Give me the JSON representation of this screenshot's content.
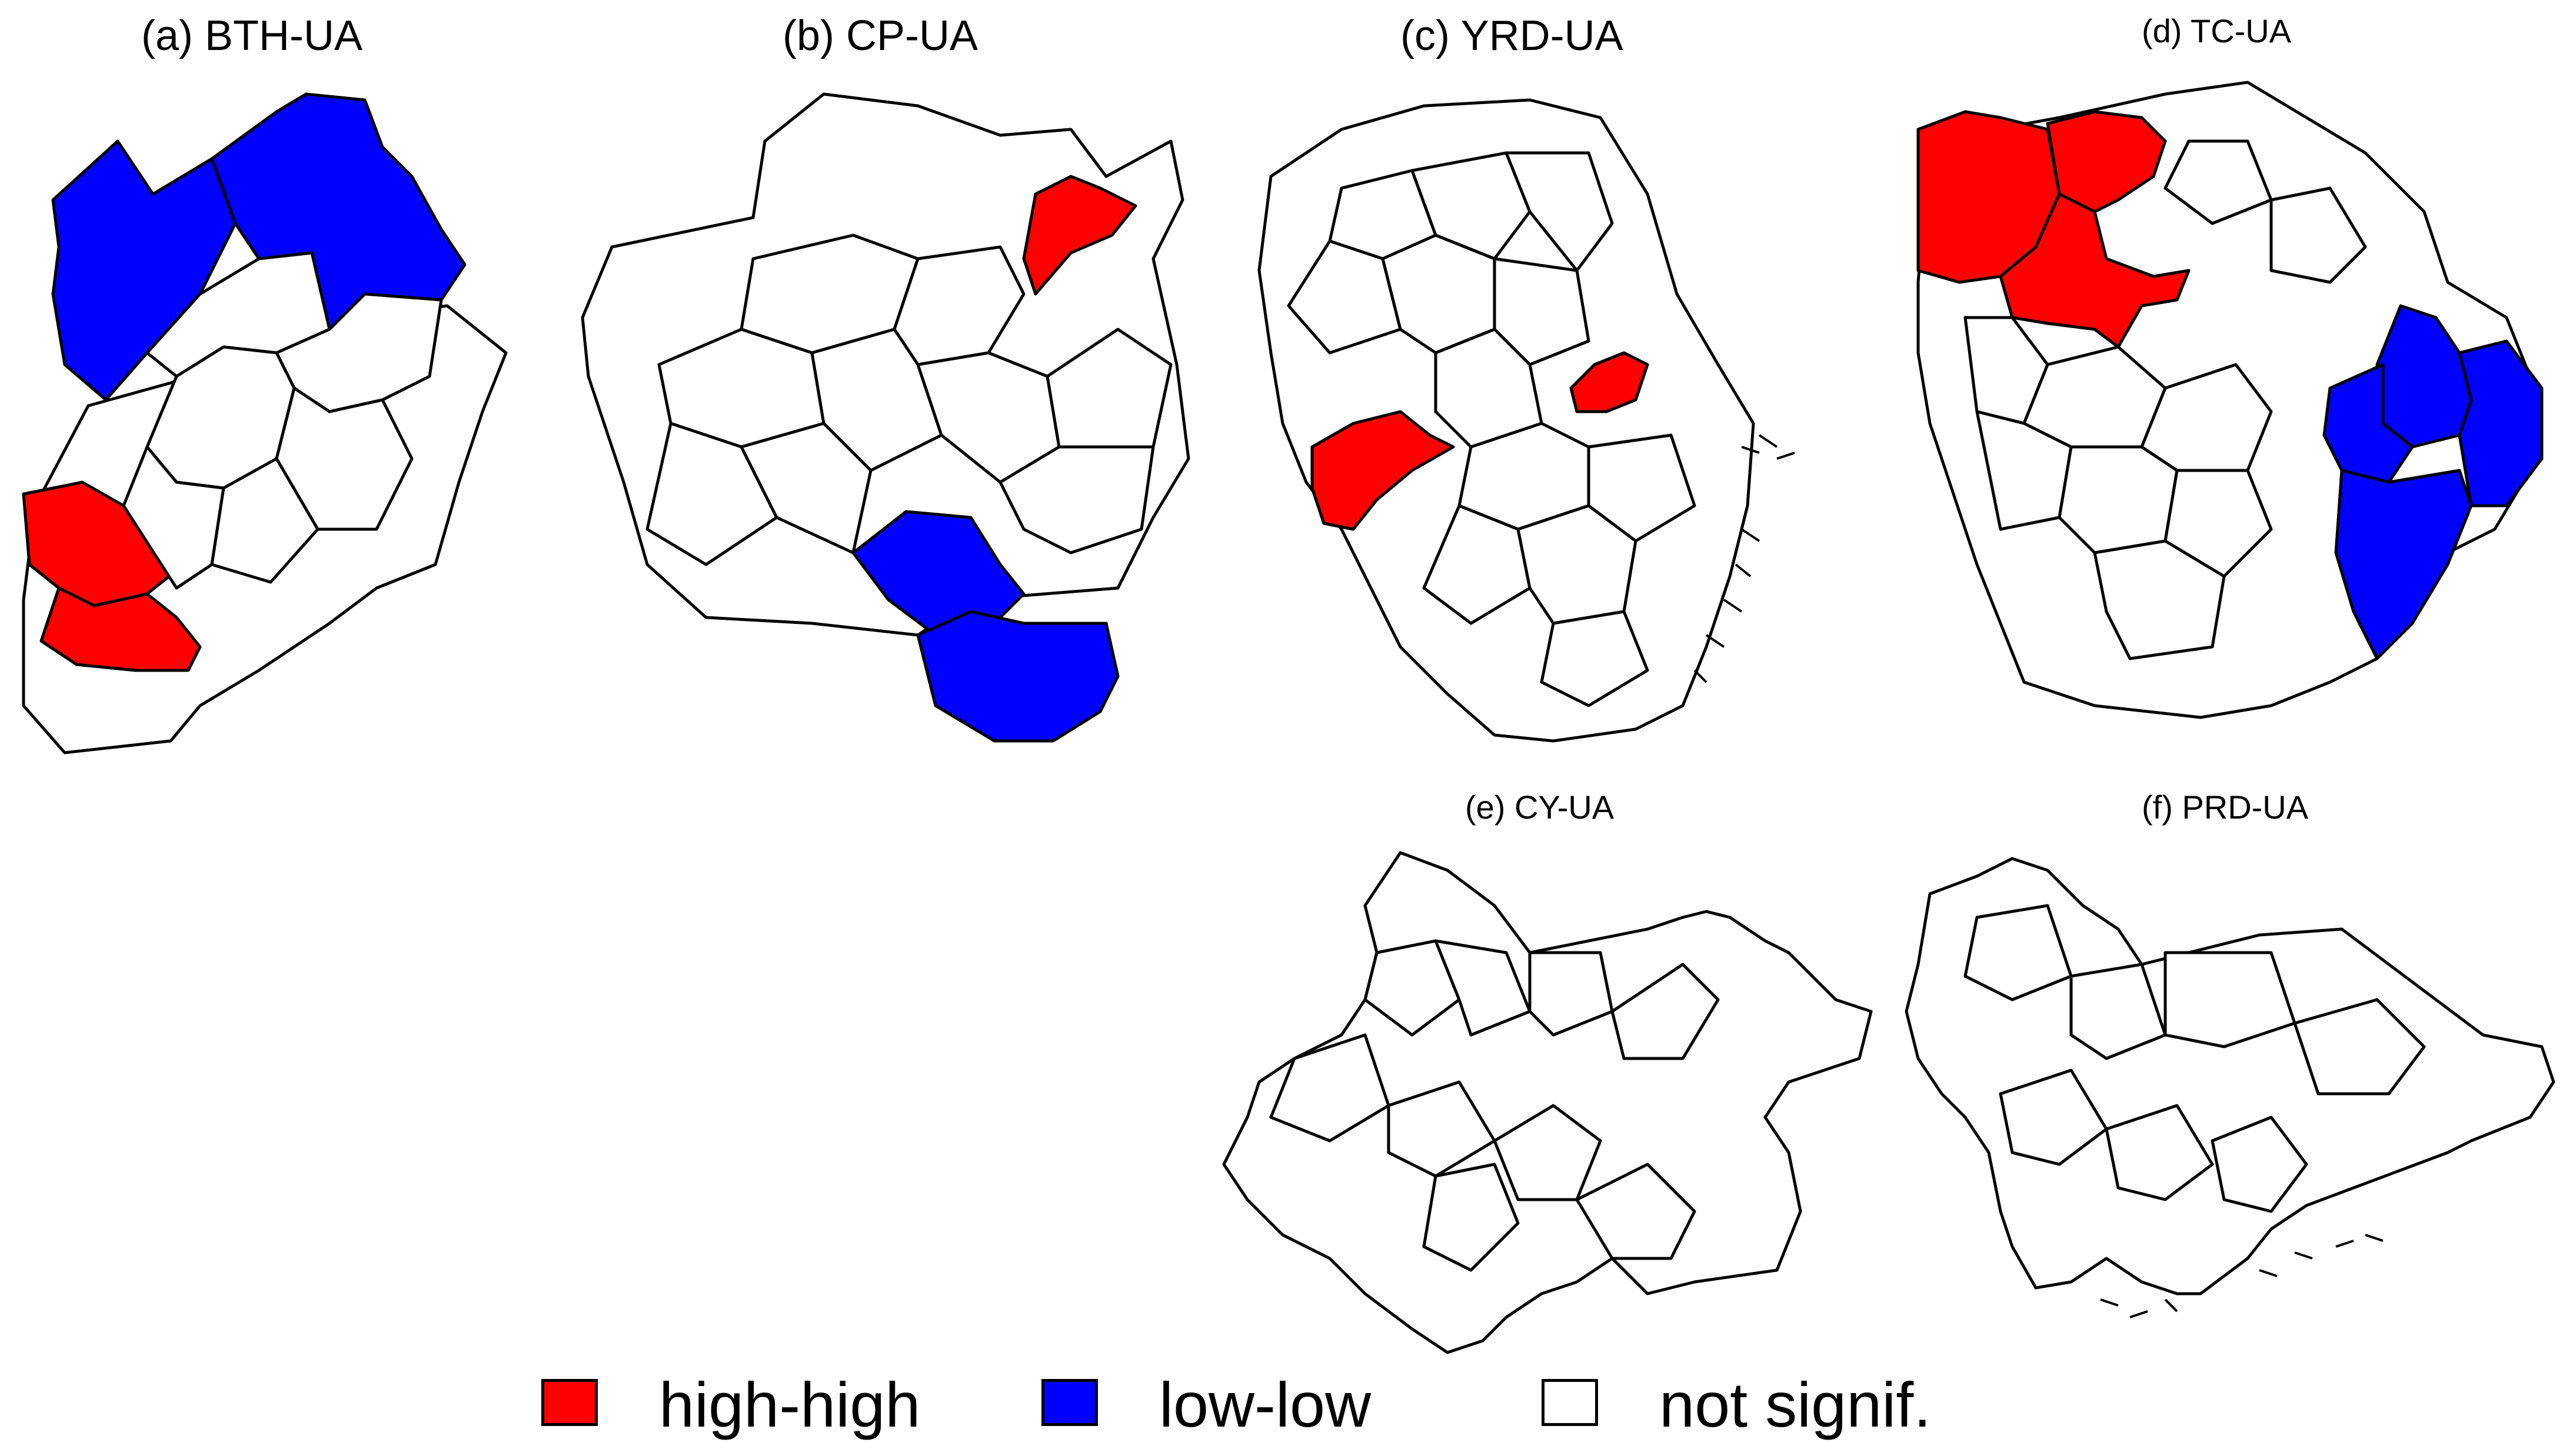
{
  "figure": {
    "panels": [
      {
        "id": "a",
        "title": "(a) BTH-UA"
      },
      {
        "id": "b",
        "title": "(b) CP-UA"
      },
      {
        "id": "c",
        "title": "(c) YRD-UA"
      },
      {
        "id": "d",
        "title": "(d) TC-UA"
      },
      {
        "id": "e",
        "title": "(e) CY-UA"
      },
      {
        "id": "f",
        "title": "(f) PRD-UA"
      }
    ],
    "legend": {
      "items": [
        {
          "label": "high-high",
          "color": "#ff0000"
        },
        {
          "label": "low-low",
          "color": "#0000ff"
        },
        {
          "label": "not signif.",
          "color": "#ffffff"
        }
      ]
    },
    "colors": {
      "high_high": "#ff0000",
      "low_low": "#0000ff",
      "not_signif": "#ffffff",
      "boundary": "#000000"
    }
  }
}
